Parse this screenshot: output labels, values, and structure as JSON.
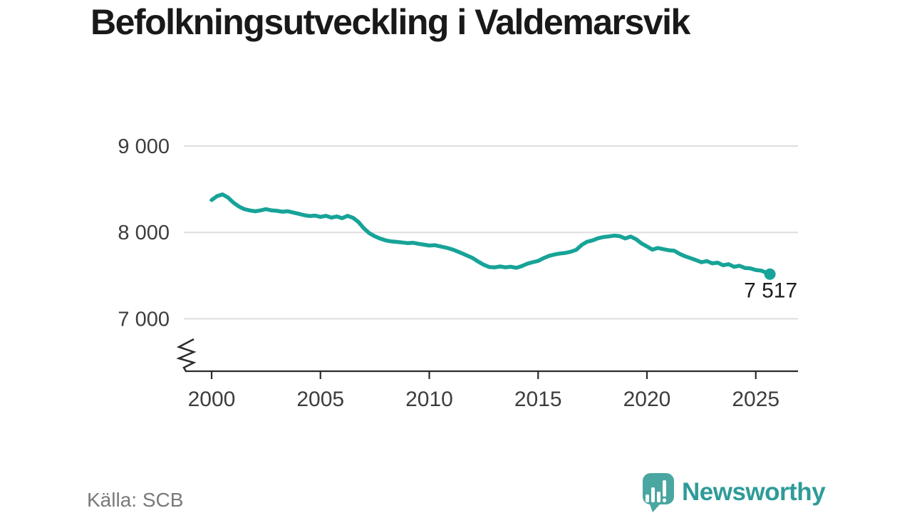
{
  "header": {
    "title": "Befolkningsutveckling i Valdemarsvik"
  },
  "footer": {
    "source": "Källa: SCB",
    "brand": "Newsworthy"
  },
  "colors": {
    "line": "#17a398",
    "grid": "#dedede",
    "axis": "#2b2b2b",
    "tick_label": "#3d3d3d",
    "title": "#191919",
    "end_label": "#1c1c1c",
    "source": "#7a7a7a",
    "logo_icon": "#4aa6a1",
    "logo_text": "#2e9b99",
    "background": "#ffffff"
  },
  "chart_data": {
    "type": "line",
    "title": "Befolkningsutveckling i Valdemarsvik",
    "xlabel": "",
    "ylabel": "",
    "grid": "horizontal",
    "axis_break": true,
    "legend": "none",
    "x_ticks": [
      2000,
      2005,
      2010,
      2015,
      2020,
      2025
    ],
    "x_tick_labels": [
      "2000",
      "2005",
      "2010",
      "2015",
      "2020",
      "2025"
    ],
    "y_ticks": [
      7000,
      8000,
      9000
    ],
    "y_tick_labels": [
      "7 000",
      "8 000",
      "9 000"
    ],
    "ylim": [
      6800,
      9150
    ],
    "xlim": [
      1998.7,
      2026.9
    ],
    "end_label": "7 517",
    "end_value": 7517,
    "series": [
      {
        "name": "Befolkning",
        "points": [
          [
            2000.0,
            8375
          ],
          [
            2000.25,
            8420
          ],
          [
            2000.5,
            8440
          ],
          [
            2000.75,
            8405
          ],
          [
            2001.0,
            8345
          ],
          [
            2001.25,
            8300
          ],
          [
            2001.5,
            8270
          ],
          [
            2001.75,
            8255
          ],
          [
            2002.0,
            8245
          ],
          [
            2002.25,
            8255
          ],
          [
            2002.5,
            8270
          ],
          [
            2002.75,
            8255
          ],
          [
            2003.0,
            8250
          ],
          [
            2003.25,
            8240
          ],
          [
            2003.5,
            8245
          ],
          [
            2003.75,
            8230
          ],
          [
            2004.0,
            8215
          ],
          [
            2004.25,
            8200
          ],
          [
            2004.5,
            8190
          ],
          [
            2004.75,
            8195
          ],
          [
            2005.0,
            8180
          ],
          [
            2005.25,
            8192
          ],
          [
            2005.5,
            8172
          ],
          [
            2005.75,
            8185
          ],
          [
            2006.0,
            8165
          ],
          [
            2006.25,
            8192
          ],
          [
            2006.5,
            8168
          ],
          [
            2006.75,
            8120
          ],
          [
            2007.0,
            8045
          ],
          [
            2007.25,
            7990
          ],
          [
            2007.5,
            7955
          ],
          [
            2007.75,
            7928
          ],
          [
            2008.0,
            7908
          ],
          [
            2008.25,
            7896
          ],
          [
            2008.5,
            7890
          ],
          [
            2008.75,
            7884
          ],
          [
            2009.0,
            7876
          ],
          [
            2009.25,
            7880
          ],
          [
            2009.5,
            7868
          ],
          [
            2009.75,
            7858
          ],
          [
            2010.0,
            7848
          ],
          [
            2010.25,
            7852
          ],
          [
            2010.5,
            7838
          ],
          [
            2010.75,
            7825
          ],
          [
            2011.0,
            7808
          ],
          [
            2011.25,
            7785
          ],
          [
            2011.5,
            7758
          ],
          [
            2011.75,
            7730
          ],
          [
            2012.0,
            7702
          ],
          [
            2012.25,
            7662
          ],
          [
            2012.5,
            7625
          ],
          [
            2012.75,
            7600
          ],
          [
            2013.0,
            7595
          ],
          [
            2013.25,
            7606
          ],
          [
            2013.5,
            7596
          ],
          [
            2013.75,
            7602
          ],
          [
            2014.0,
            7590
          ],
          [
            2014.25,
            7610
          ],
          [
            2014.5,
            7638
          ],
          [
            2014.75,
            7655
          ],
          [
            2015.0,
            7670
          ],
          [
            2015.25,
            7702
          ],
          [
            2015.5,
            7728
          ],
          [
            2015.75,
            7744
          ],
          [
            2016.0,
            7756
          ],
          [
            2016.25,
            7762
          ],
          [
            2016.5,
            7776
          ],
          [
            2016.75,
            7798
          ],
          [
            2017.0,
            7855
          ],
          [
            2017.25,
            7892
          ],
          [
            2017.5,
            7908
          ],
          [
            2017.75,
            7932
          ],
          [
            2018.0,
            7946
          ],
          [
            2018.25,
            7954
          ],
          [
            2018.5,
            7963
          ],
          [
            2018.75,
            7956
          ],
          [
            2019.0,
            7930
          ],
          [
            2019.25,
            7952
          ],
          [
            2019.5,
            7922
          ],
          [
            2019.75,
            7872
          ],
          [
            2020.0,
            7838
          ],
          [
            2020.25,
            7800
          ],
          [
            2020.5,
            7820
          ],
          [
            2020.75,
            7806
          ],
          [
            2021.0,
            7794
          ],
          [
            2021.25,
            7788
          ],
          [
            2021.5,
            7752
          ],
          [
            2021.75,
            7724
          ],
          [
            2022.0,
            7702
          ],
          [
            2022.25,
            7680
          ],
          [
            2022.5,
            7654
          ],
          [
            2022.75,
            7668
          ],
          [
            2023.0,
            7642
          ],
          [
            2023.25,
            7650
          ],
          [
            2023.5,
            7620
          ],
          [
            2023.75,
            7632
          ],
          [
            2024.0,
            7602
          ],
          [
            2024.25,
            7614
          ],
          [
            2024.5,
            7588
          ],
          [
            2024.75,
            7584
          ],
          [
            2025.0,
            7564
          ],
          [
            2025.25,
            7558
          ],
          [
            2025.5,
            7532
          ],
          [
            2025.65,
            7517
          ]
        ]
      }
    ]
  }
}
